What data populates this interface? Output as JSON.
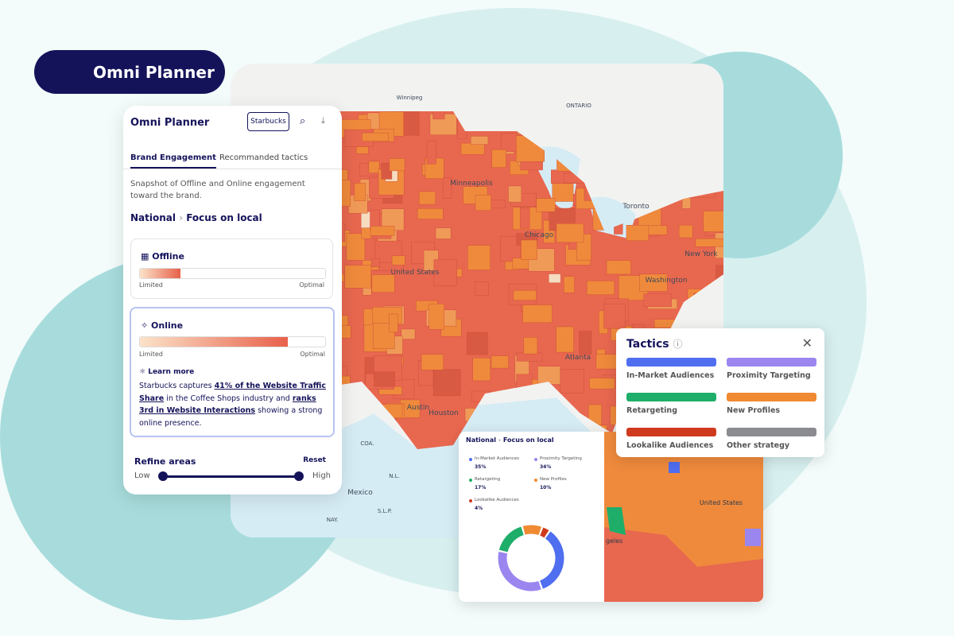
{
  "badge": {
    "title": "Omni Planner"
  },
  "map": {
    "labels": [
      "Winnipeg",
      "ONTARIO",
      "Toronto",
      "New York",
      "Chicago",
      "United States",
      "Minneapolis",
      "Washington",
      "Atlanta",
      "Austin",
      "Houston",
      "Mexico",
      "COA.",
      "N.L.",
      "S.L.P.",
      "NAY."
    ]
  },
  "panel": {
    "title": "Omni Planner",
    "brand_button": "Starbucks",
    "tabs": [
      "Brand Engagement",
      "Recommanded tactics"
    ],
    "description": "Snapshot of Offline and Online engagement toward the brand.",
    "breadcrumb": [
      "National",
      "Focus on local"
    ],
    "offline": {
      "title": "Offline",
      "level": 22,
      "low_label": "Limited",
      "high_label": "Optimal"
    },
    "online": {
      "title": "Online",
      "level": 80,
      "low_label": "Limited",
      "high_label": "Optimal",
      "insight_title": "Learn more",
      "insight": [
        "Starbucks captures ",
        "41% of the Website Traffic Share",
        " in the Coffee Shops industry and ",
        "ranks 3rd in Website Interactions",
        " showing a strong online presence."
      ]
    },
    "refine": {
      "title": "Refine areas",
      "reset": "Reset",
      "low": "Low",
      "high": "High"
    }
  },
  "tactics": {
    "title": "Tactics",
    "items": [
      {
        "name": "In-Market Audiences",
        "color": "#4f6ef0"
      },
      {
        "name": "Proximity Targeting",
        "color": "#9b86f0"
      },
      {
        "name": "Retargeting",
        "color": "#1fae6a"
      },
      {
        "name": "New Profiles",
        "color": "#f08a32"
      },
      {
        "name": "Lookalike Audiences",
        "color": "#cf3a1e"
      },
      {
        "name": "Other strategy",
        "color": "#8b8b92"
      }
    ]
  },
  "breakdown": {
    "breadcrumb": [
      "National",
      "Focus on local"
    ],
    "categories": [
      "In-Market Audiences",
      "Proximity Targeting",
      "Retargeting",
      "New Profiles",
      "Lookalike Audiences"
    ],
    "values": [
      35,
      34,
      17,
      10,
      4
    ],
    "value_labels": [
      "35%",
      "34%",
      "17%",
      "10%",
      "4%"
    ],
    "colors": [
      "#4f6ef0",
      "#9b86f0",
      "#1fae6a",
      "#f08a32",
      "#cf3a1e"
    ],
    "map_labels": [
      "United States",
      "geles"
    ]
  }
}
